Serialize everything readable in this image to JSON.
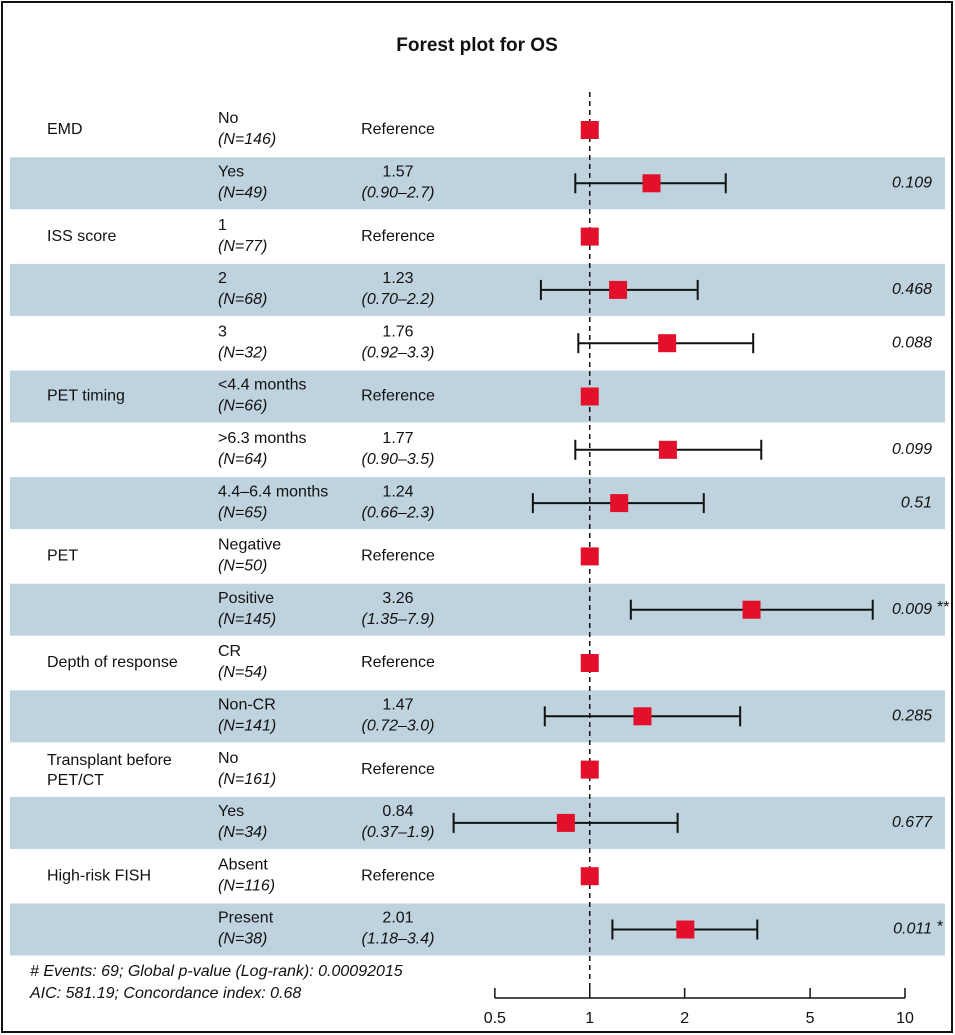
{
  "chart_data": {
    "type": "forest",
    "title": "Forest plot for OS",
    "reference_value": 1,
    "xscale": "log",
    "xlim": [
      0.35,
      10
    ],
    "xticks": [
      0.5,
      1,
      2,
      5,
      10
    ],
    "marker_color": "#e3102b",
    "shade_color": "#bfd3df",
    "rows": [
      {
        "group": "EMD",
        "level": "No",
        "n": "(N=146)",
        "estimate_label": "Reference"
      },
      {
        "level": "Yes",
        "n": "(N=49)",
        "hr": 1.57,
        "ci": [
          0.9,
          2.7
        ],
        "ci_label": "(0.90–2.7)",
        "p": 0.109
      },
      {
        "group": "ISS score",
        "level": "1",
        "n": "(N=77)",
        "estimate_label": "Reference"
      },
      {
        "level": "2",
        "n": "(N=68)",
        "hr": 1.23,
        "ci": [
          0.7,
          2.2
        ],
        "ci_label": "(0.70–2.2)",
        "p": 0.468
      },
      {
        "level": "3",
        "n": "(N=32)",
        "hr": 1.76,
        "ci": [
          0.92,
          3.3
        ],
        "ci_label": "(0.92–3.3)",
        "p": 0.088
      },
      {
        "group": "PET timing",
        "level": "<4.4 months",
        "n": "(N=66)",
        "estimate_label": "Reference"
      },
      {
        "level": ">6.3 months",
        "n": "(N=64)",
        "hr": 1.77,
        "ci": [
          0.9,
          3.5
        ],
        "ci_label": "(0.90–3.5)",
        "p": 0.099
      },
      {
        "level": "4.4–6.4 months",
        "n": "(N=65)",
        "hr": 1.24,
        "ci": [
          0.66,
          2.3
        ],
        "ci_label": "(0.66–2.3)",
        "p": 0.51
      },
      {
        "group": "PET",
        "level": "Negative",
        "n": "(N=50)",
        "estimate_label": "Reference"
      },
      {
        "level": "Positive",
        "n": "(N=145)",
        "hr": 3.26,
        "ci": [
          1.35,
          7.9
        ],
        "ci_label": "(1.35–7.9)",
        "p": 0.009,
        "sig": "**"
      },
      {
        "group": "Depth of response",
        "level": "CR",
        "n": "(N=54)",
        "estimate_label": "Reference"
      },
      {
        "level": "Non-CR",
        "n": "(N=141)",
        "hr": 1.47,
        "ci": [
          0.72,
          3.0
        ],
        "ci_label": "(0.72–3.0)",
        "p": 0.285
      },
      {
        "group": [
          "Transplant before",
          "PET/CT"
        ],
        "level": "No",
        "n": "(N=161)",
        "estimate_label": "Reference"
      },
      {
        "level": "Yes",
        "n": "(N=34)",
        "hr": 0.84,
        "ci": [
          0.37,
          1.9
        ],
        "ci_label": "(0.37–1.9)",
        "p": 0.677
      },
      {
        "group": "High-risk FISH",
        "level": "Absent",
        "n": "(N=116)",
        "estimate_label": "Reference"
      },
      {
        "level": "Present",
        "n": "(N=38)",
        "hr": 2.01,
        "ci": [
          1.18,
          3.4
        ],
        "ci_label": "(1.18–3.4)",
        "p": 0.011,
        "sig": "*"
      }
    ],
    "notes": [
      "# Events: 69; Global p-value (Log-rank): 0.00092015",
      "AIC: 581.19; Concordance index: 0.68"
    ]
  }
}
